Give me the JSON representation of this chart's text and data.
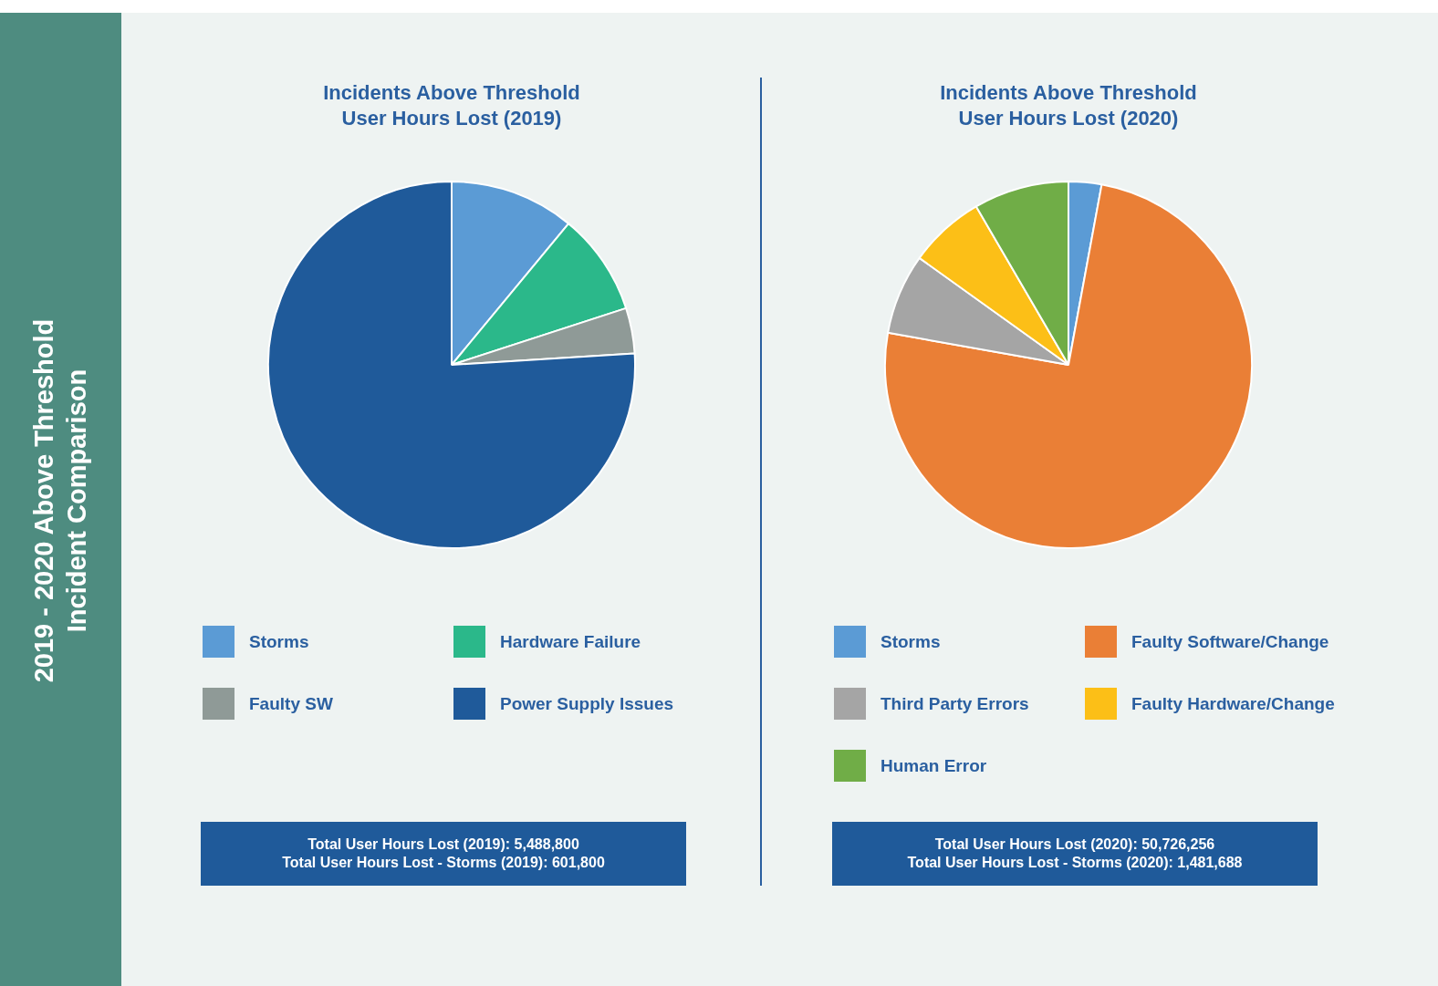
{
  "chart_data": [
    {
      "type": "pie",
      "title": "Incidents Above Threshold\nUser Hours Lost (2019)",
      "categories": [
        "Storms",
        "Hardware Failure",
        "Faulty SW",
        "Power Supply Issues"
      ],
      "values": [
        11,
        9,
        4,
        76
      ],
      "colors": [
        "#5b9bd5",
        "#2bb88a",
        "#8f9a97",
        "#1f5a9a"
      ],
      "legend": "bottom",
      "annotations": [
        "2019 - 2020 Above Threshold\nIncident Comparison",
        "Total User Hours Lost (2019): 5,488,800\nTotal User Hours Lost - Storms (2019): 601,800"
      ]
    },
    {
      "type": "pie",
      "title": "Incidents Above Threshold\nUser Hours Lost (2020)",
      "categories": [
        "Storms",
        "Faulty Software/Change",
        "Third Party Errors",
        "Faulty Hardware/Change",
        "Human Error"
      ],
      "values": [
        2.9,
        74.9,
        7.1,
        6.7,
        8.4
      ],
      "colors": [
        "#5b9bd5",
        "#ea7f36",
        "#a5a5a5",
        "#fcbf17",
        "#70ad47"
      ],
      "legend": "bottom",
      "annotations": [
        "Total User Hours Lost (2020): 50,726,256\nTotal User Hours Lost - Storms (2020): 1,481,688"
      ]
    }
  ]
}
